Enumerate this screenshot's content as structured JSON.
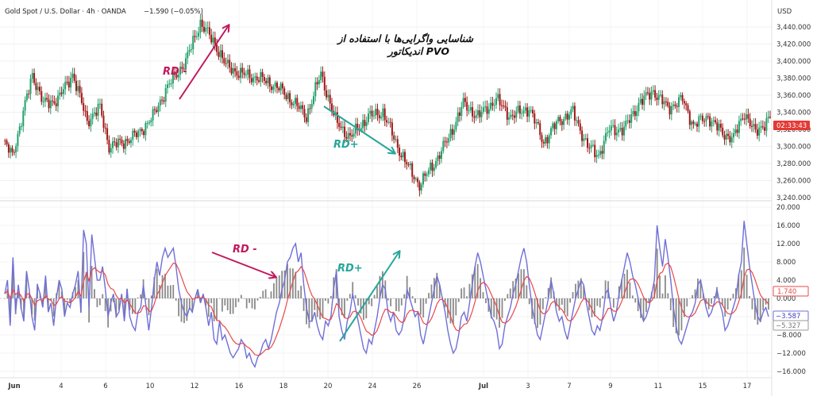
{
  "header": {
    "symbol": "Gold Spot / U.S. Dollar · 4h · OANDA",
    "change": "−1.590 (−0.05%)"
  },
  "currency": "USD",
  "annotation_title": {
    "line1": "شناسایی واگرایی‌ها با استفاده از",
    "line2": "اندیکاتور PVO"
  },
  "annotations": {
    "top_rd_minus": "RD -",
    "top_rd_plus": "RD+",
    "bottom_rd_minus": "RD -",
    "bottom_rd_plus": "RD+"
  },
  "price_tag": {
    "countdown": "02:33:43"
  },
  "indicator_tags": {
    "signal": "1.740",
    "pvo": "−3.587",
    "histogram": "−5.327"
  },
  "colors": {
    "bull": "#22a06b",
    "bear": "#a01818",
    "pvo_line": "#6f6fd8",
    "signal_line": "#e84848",
    "histogram": "#8a8a8a",
    "arrow_rd_minus": "#c2185b",
    "arrow_rd_plus": "#26a69a",
    "price_tag": "#e53935"
  },
  "chart_data": [
    {
      "type": "candlestick",
      "ylim": [
        3230,
        3460
      ],
      "y_ticks": [
        "3,440.000",
        "3,420.000",
        "3,400.000",
        "3,380.000",
        "3,360.000",
        "3,340.000",
        "3,320.000",
        "3,300.000",
        "3,280.000",
        "3,260.000",
        "3,240.000"
      ],
      "x_ticks": [
        "Jun",
        "4",
        "6",
        "10",
        "12",
        "16",
        "18",
        "20",
        "24",
        "26",
        "Jul",
        "3",
        "7",
        "9",
        "11",
        "15",
        "17"
      ],
      "anchors": [
        [
          0,
          3305
        ],
        [
          5,
          3290
        ],
        [
          10,
          3330
        ],
        [
          16,
          3385
        ],
        [
          22,
          3350
        ],
        [
          30,
          3355
        ],
        [
          38,
          3385
        ],
        [
          46,
          3330
        ],
        [
          53,
          3345
        ],
        [
          58,
          3300
        ],
        [
          66,
          3305
        ],
        [
          74,
          3315
        ],
        [
          82,
          3335
        ],
        [
          90,
          3370
        ],
        [
          100,
          3400
        ],
        [
          108,
          3445
        ],
        [
          116,
          3420
        ],
        [
          122,
          3395
        ],
        [
          130,
          3385
        ],
        [
          140,
          3380
        ],
        [
          150,
          3370
        ],
        [
          160,
          3350
        ],
        [
          166,
          3335
        ],
        [
          174,
          3385
        ],
        [
          182,
          3330
        ],
        [
          190,
          3310
        ],
        [
          200,
          3335
        ],
        [
          208,
          3340
        ],
        [
          216,
          3300
        ],
        [
          222,
          3275
        ],
        [
          228,
          3255
        ],
        [
          236,
          3280
        ],
        [
          244,
          3310
        ],
        [
          252,
          3350
        ],
        [
          260,
          3335
        ],
        [
          270,
          3355
        ],
        [
          278,
          3335
        ],
        [
          288,
          3345
        ],
        [
          296,
          3305
        ],
        [
          304,
          3330
        ],
        [
          312,
          3340
        ],
        [
          320,
          3300
        ],
        [
          326,
          3290
        ],
        [
          332,
          3320
        ],
        [
          340,
          3320
        ],
        [
          348,
          3350
        ],
        [
          356,
          3365
        ],
        [
          364,
          3345
        ],
        [
          372,
          3355
        ],
        [
          378,
          3325
        ],
        [
          386,
          3335
        ],
        [
          394,
          3315
        ],
        [
          400,
          3310
        ],
        [
          406,
          3340
        ],
        [
          412,
          3315
        ],
        [
          420,
          3335
        ]
      ]
    },
    {
      "type": "line+histogram",
      "ylim": [
        -17,
        20
      ],
      "y_ticks": [
        "20.000",
        "16.000",
        "12.000",
        "8.000",
        "4.000",
        "0.000",
        "−4.000",
        "−8.000",
        "−12.000",
        "−16.000"
      ],
      "series": [
        {
          "values": [
            1,
            4,
            -6,
            9,
            -3,
            3,
            -2,
            -5,
            6,
            2,
            -4,
            -7,
            3,
            1,
            -2,
            5,
            -3,
            -1,
            -6,
            0,
            4,
            2,
            -4,
            -1,
            -2,
            1,
            3,
            6,
            -3,
            15,
            12,
            -2,
            14,
            9,
            4,
            4,
            7,
            2,
            -4,
            -1,
            1,
            -4,
            -3,
            1,
            -5,
            2,
            -4,
            -6,
            -7,
            -3,
            -2,
            3,
            -2,
            -7,
            -2,
            4,
            8,
            5,
            9,
            11,
            9,
            10,
            11,
            7,
            2,
            -1,
            -3,
            -4,
            -2,
            -3,
            0,
            2,
            -1,
            1,
            -2,
            -6,
            -3,
            -9,
            -10,
            -5,
            -9,
            -8,
            -10,
            -12,
            -13,
            -12,
            -11,
            -9,
            -10,
            -13,
            -12,
            -14,
            -15,
            -13,
            -12,
            -10,
            -9,
            -11,
            -9,
            -6,
            -3,
            -1,
            2,
            4,
            8,
            9,
            11,
            12,
            8,
            10,
            3,
            -2,
            -5,
            -5,
            -3,
            -6,
            -8,
            -9,
            -5,
            -6,
            -4,
            2,
            6,
            -4,
            -7,
            -9,
            -5,
            -3,
            1,
            -2,
            -5,
            -8,
            -11,
            -12,
            -9,
            -10,
            -7,
            -4,
            0,
            3,
            2,
            -3,
            -5,
            -3,
            -7,
            -8,
            -7,
            -4,
            2,
            0,
            -2,
            -4,
            -3,
            -8,
            -10,
            -7,
            -4,
            -1,
            2,
            5,
            3,
            0,
            -3,
            -7,
            -10,
            -12,
            -11,
            -8,
            -4,
            -3,
            -5,
            -1,
            3,
            7,
            10,
            8,
            5,
            2,
            -1,
            -4,
            -5,
            -7,
            -11,
            -10,
            -6,
            -4,
            -2,
            1,
            3,
            6,
            9,
            11,
            8,
            3,
            -2,
            -5,
            -8,
            -9,
            -6,
            -3,
            0,
            4,
            1,
            -3,
            -5,
            -4,
            -7,
            -9,
            -6,
            -3,
            0,
            2,
            4,
            3,
            -1,
            -4,
            -7,
            -8,
            -6,
            -7,
            -4,
            1,
            2,
            -2,
            -5,
            -3,
            1,
            4,
            7,
            10,
            8,
            5,
            3,
            0,
            -3,
            -5,
            -4,
            -2,
            1,
            4,
            16,
            11,
            7,
            13,
            9,
            4,
            -2,
            -6,
            -9,
            -10,
            -8,
            -6,
            -4,
            -3,
            -1,
            3,
            4,
            1,
            -2,
            -4,
            -3,
            -1,
            2,
            -1,
            -3,
            -7,
            -6,
            -4,
            -2,
            0,
            5,
            8,
            17,
            12,
            7,
            3,
            -1,
            -4,
            -5,
            -3,
            -2,
            -4
          ]
        }
      ]
    }
  ]
}
